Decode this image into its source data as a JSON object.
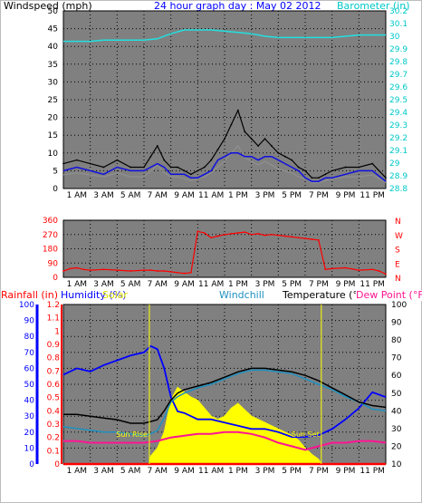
{
  "header": {
    "top_left_label": "Windspeed (mph)",
    "title": "24 hour graph day : May 02 2012",
    "barometer_label": "Barometer (in)"
  },
  "colors": {
    "plot_bg": "#808080",
    "grid": "#000000",
    "windspeed": "#000000",
    "windspeed_avg": "#1010e0",
    "gust_shadow": "#909090",
    "barometer": "#22e0e0",
    "direction": "#ff0000",
    "rainfall": "#ff0000",
    "humidity": "#0000ff",
    "solar": "#ffff00",
    "windchill": "#1e90c0",
    "temperature": "#000000",
    "dew_point": "#ff1493",
    "sun_marker": "#ffff00",
    "axis_left_top": "#000000",
    "axis_right_top": "#00ffff",
    "axis_right_mid": "#ff0000",
    "axis_humidity": "#0000ff",
    "axis_rain": "#ff0000"
  },
  "chart_data": [
    {
      "type": "line",
      "panel": "wind_barometer",
      "x_ticks": [
        "1 AM",
        "3 AM",
        "5 AM",
        "7 AM",
        "9 AM",
        "11 AM",
        "1 PM",
        "3 PM",
        "5 PM",
        "7 PM",
        "9 PM",
        "11 PM"
      ],
      "xlim": [
        0,
        24
      ],
      "ylim_left": [
        0,
        50
      ],
      "ylim_right": [
        28.8,
        30.2
      ],
      "y_ticks_left": [
        "0",
        "5",
        "10",
        "15",
        "20",
        "25",
        "30",
        "35",
        "40",
        "45",
        "50"
      ],
      "y_ticks_right": [
        "28.8",
        "28.9",
        "29",
        "29.1",
        "29.2",
        "29.3",
        "29.4",
        "29.5",
        "29.6",
        "29.7",
        "29.8",
        "29.9",
        "30",
        "30.1",
        "30.2"
      ],
      "grid": true,
      "series": [
        {
          "name": "Windspeed (mph)",
          "axis": "left",
          "x": [
            0,
            1,
            2,
            3,
            4,
            5,
            6,
            6.5,
            7,
            7.5,
            8,
            8.5,
            9,
            9.5,
            10,
            10.5,
            11,
            11.5,
            12,
            12.5,
            13,
            13.5,
            14,
            14.5,
            15,
            15.5,
            16,
            16.5,
            17,
            17.5,
            18,
            18.5,
            19,
            19.5,
            20,
            21,
            22,
            23,
            24
          ],
          "values": [
            7,
            8,
            7,
            6,
            8,
            6,
            6,
            9,
            12,
            8,
            6,
            6,
            5,
            4,
            5,
            6,
            8,
            11,
            14,
            18,
            22,
            16,
            14,
            12,
            14,
            12,
            10,
            9,
            8,
            6,
            5,
            3,
            3,
            4,
            5,
            6,
            6,
            7,
            3
          ]
        },
        {
          "name": "Wind avg",
          "axis": "left",
          "x": [
            0,
            1,
            2,
            3,
            4,
            5,
            6,
            6.5,
            7,
            7.5,
            8,
            8.5,
            9,
            9.5,
            10,
            10.5,
            11,
            11.5,
            12,
            12.5,
            13,
            13.5,
            14,
            14.5,
            15,
            15.5,
            16,
            16.5,
            17,
            17.5,
            18,
            18.5,
            19,
            19.5,
            20,
            21,
            22,
            23,
            24
          ],
          "values": [
            5,
            6,
            5,
            4,
            6,
            5,
            5,
            6,
            7,
            6,
            4,
            4,
            4,
            3,
            3,
            4,
            5,
            8,
            9,
            10,
            10,
            9,
            9,
            8,
            9,
            9,
            8,
            7,
            6,
            5,
            3,
            2,
            2,
            3,
            3,
            4,
            5,
            5,
            2
          ]
        },
        {
          "name": "Barometer (in)",
          "axis": "right",
          "x": [
            0,
            1,
            2,
            3,
            4,
            5,
            6,
            7,
            8,
            9,
            10,
            11,
            12,
            13,
            14,
            15,
            16,
            17,
            18,
            19,
            20,
            21,
            22,
            23,
            24
          ],
          "values": [
            29.96,
            29.96,
            29.96,
            29.97,
            29.97,
            29.97,
            29.97,
            29.98,
            30.02,
            30.05,
            30.05,
            30.05,
            30.04,
            30.03,
            30.02,
            30.0,
            29.99,
            29.99,
            29.99,
            29.99,
            29.99,
            30.0,
            30.01,
            30.01,
            30.01
          ]
        }
      ]
    },
    {
      "type": "line",
      "panel": "wind_direction",
      "x_ticks": [
        "1 AM",
        "3 AM",
        "5 AM",
        "7 AM",
        "9 AM",
        "11 AM",
        "1 PM",
        "3 PM",
        "5 PM",
        "7 PM",
        "9 PM",
        "11 PM"
      ],
      "xlim": [
        0,
        24
      ],
      "ylim_left": [
        0,
        360
      ],
      "y_ticks_left": [
        "0",
        "90",
        "180",
        "270",
        "360"
      ],
      "y_ticks_right": [
        "N",
        "E",
        "S",
        "W",
        "N"
      ],
      "grid": true,
      "series": [
        {
          "name": "Wind direction",
          "x": [
            0,
            0.5,
            1,
            1.5,
            2,
            3,
            4,
            5,
            6,
            6.5,
            7,
            7.5,
            8,
            8.5,
            9,
            9.5,
            10,
            10.5,
            11,
            11.5,
            12,
            12.5,
            13,
            13.5,
            14,
            14.5,
            15,
            15.5,
            16,
            16.5,
            17,
            17.5,
            18,
            18.5,
            19,
            19.5,
            20,
            21,
            22,
            23,
            23.5,
            24
          ],
          "values": [
            40,
            55,
            60,
            50,
            45,
            50,
            45,
            40,
            45,
            45,
            40,
            40,
            35,
            30,
            25,
            30,
            290,
            280,
            250,
            260,
            270,
            275,
            280,
            285,
            270,
            275,
            265,
            270,
            265,
            260,
            255,
            250,
            245,
            240,
            235,
            50,
            55,
            60,
            45,
            50,
            40,
            20
          ]
        }
      ]
    },
    {
      "type": "line",
      "panel": "temperature_humidity",
      "x_ticks": [
        "1 AM",
        "3 AM",
        "5 AM",
        "7 AM",
        "9 AM",
        "11 AM",
        "1 PM",
        "3 PM",
        "5 PM",
        "7 PM",
        "9 PM",
        "11 PM"
      ],
      "xlim": [
        0,
        24
      ],
      "ylim_humidity": [
        0,
        100
      ],
      "ylim_rain": [
        0,
        1.2
      ],
      "ylim_right": [
        10,
        100
      ],
      "y_ticks_humidity": [
        "0",
        "10",
        "20",
        "30",
        "40",
        "50",
        "60",
        "70",
        "80",
        "90",
        "100"
      ],
      "y_ticks_rain": [
        "0",
        "0.1",
        "0.2",
        "0.3",
        "0.4",
        "0.5",
        "0.6",
        "0.7",
        "0.8",
        "0.9",
        "1",
        "1.1",
        "1.2"
      ],
      "y_ticks_right": [
        "10",
        "20",
        "30",
        "40",
        "50",
        "60",
        "70",
        "80",
        "90",
        "100"
      ],
      "legend": [
        "Rainfall (in)",
        "Humidity (%)",
        "Solar",
        "Windchill",
        "Temperature (°F)",
        "Dew Point (°F)"
      ],
      "annotations": [
        "Sun Rise",
        "Sun Set"
      ],
      "grid": true,
      "series": [
        {
          "name": "Temperature (°F)",
          "x": [
            0,
            1,
            2,
            3,
            4,
            5,
            6,
            6.5,
            7,
            7.5,
            8,
            8.5,
            9,
            10,
            11,
            12,
            13,
            14,
            15,
            16,
            17,
            18,
            19,
            20,
            21,
            22,
            23,
            24
          ],
          "values": [
            38,
            38,
            37,
            36,
            35,
            33,
            33,
            34,
            35,
            40,
            46,
            50,
            52,
            54,
            56,
            59,
            62,
            64,
            64,
            63,
            62,
            60,
            57,
            53,
            49,
            45,
            43,
            42
          ]
        },
        {
          "name": "Windchill",
          "x": [
            0,
            1,
            2,
            3,
            4,
            5,
            6,
            6.5,
            7,
            7.5,
            8,
            8.5,
            9,
            10,
            11,
            12,
            13,
            14,
            15,
            16,
            17,
            18,
            19,
            20,
            21,
            22,
            23,
            24
          ],
          "values": [
            31,
            30,
            29,
            28,
            28,
            27,
            26,
            27,
            29,
            36,
            45,
            48,
            50,
            53,
            55,
            58,
            61,
            63,
            63,
            62,
            61,
            58,
            55,
            52,
            48,
            45,
            41,
            40
          ]
        },
        {
          "name": "Humidity (%)",
          "x": [
            0,
            1,
            2,
            3,
            4,
            5,
            6,
            6.5,
            7,
            7.5,
            8,
            8.5,
            9,
            10,
            11,
            12,
            13,
            14,
            15,
            16,
            17,
            18,
            19,
            20,
            21,
            22,
            23,
            24
          ],
          "values": [
            56,
            60,
            58,
            62,
            65,
            68,
            70,
            74,
            72,
            60,
            42,
            33,
            32,
            28,
            28,
            26,
            24,
            22,
            22,
            20,
            17,
            17,
            18,
            22,
            28,
            35,
            45,
            42
          ]
        },
        {
          "name": "Dew Point (°F)",
          "x": [
            0,
            1,
            2,
            3,
            4,
            5,
            6,
            7,
            8,
            9,
            10,
            11,
            12,
            13,
            14,
            15,
            16,
            17,
            18,
            19,
            20,
            21,
            22,
            23,
            24
          ],
          "values": [
            23,
            23,
            22,
            22,
            22,
            22,
            22,
            23,
            25,
            26,
            27,
            27,
            28,
            28,
            27,
            25,
            22,
            20,
            18,
            20,
            22,
            22,
            23,
            23,
            22
          ]
        },
        {
          "name": "Solar",
          "x": [
            0,
            6.4,
            6.5,
            7,
            7.5,
            8,
            8.5,
            9,
            9.5,
            10,
            10.5,
            11,
            11.5,
            12,
            12.5,
            13,
            13.5,
            14,
            14.5,
            15,
            15.5,
            16,
            16.5,
            17,
            17.5,
            18,
            18.5,
            19,
            19.2,
            19.3,
            24
          ],
          "values": [
            0,
            0,
            5,
            10,
            20,
            40,
            48,
            45,
            42,
            40,
            35,
            30,
            28,
            30,
            35,
            38,
            34,
            30,
            28,
            26,
            24,
            22,
            20,
            18,
            15,
            10,
            6,
            3,
            0,
            0,
            0
          ]
        },
        {
          "name": "Rainfall (in)",
          "x": [
            0,
            24
          ],
          "values": [
            0,
            0
          ]
        }
      ]
    }
  ],
  "panel3_labels": {
    "rainfall": "Rainfall (in)",
    "humidity": "Humidity (%)",
    "solar": "Solar",
    "windchill": "Windchill",
    "temperature": "Temperature (°F)",
    "dew_point": "Dew Point (°F)",
    "sun_rise": "Sun Rise",
    "sun_set": "Sun Set"
  }
}
